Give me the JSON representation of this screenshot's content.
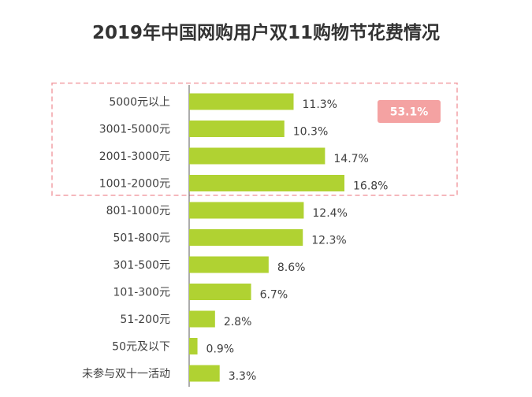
{
  "chart_data": {
    "type": "bar",
    "orientation": "horizontal",
    "title": "2019年中国网购用户双11购物节花费情况",
    "categories": [
      "5000元以上",
      "3001-5000元",
      "2001-3000元",
      "1001-2000元",
      "801-1000元",
      "501-800元",
      "301-500元",
      "101-300元",
      "51-200元",
      "50元及以下",
      "未参与双十一活动"
    ],
    "values": [
      11.3,
      10.3,
      14.7,
      16.8,
      12.4,
      12.3,
      8.6,
      6.7,
      2.8,
      0.9,
      3.3
    ],
    "value_labels": [
      "11.3%",
      "10.3%",
      "14.7%",
      "16.8%",
      "12.4%",
      "12.3%",
      "8.6%",
      "6.7%",
      "2.8%",
      "0.9%",
      "3.3%"
    ],
    "bar_color": "#b0d232",
    "highlight": {
      "categories": [
        "5000元以上",
        "3001-5000元",
        "2001-3000元",
        "1001-2000元"
      ],
      "label": "53.1%",
      "box_color": "#f2a0a6",
      "badge_color": "#f4a2a2"
    },
    "xlabel": "",
    "ylabel": "",
    "xlim": [
      0,
      16.8
    ],
    "grid": false,
    "legend": "none"
  }
}
